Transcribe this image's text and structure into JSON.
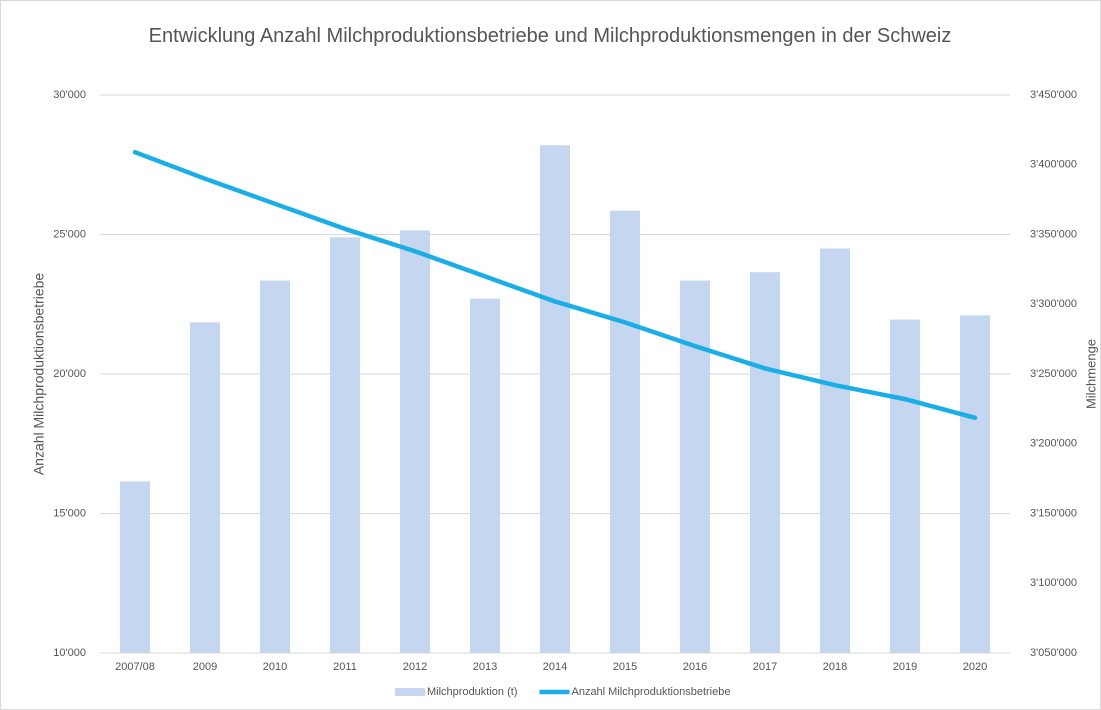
{
  "chart_data": {
    "type": "bar",
    "title": "Entwicklung Anzahl Milchproduktionsbetriebe und Milchproduktionsmengen in der Schweiz",
    "ylabel": "Anzahl Milchproduktionsbetriebe",
    "y2label": "Milchmenge",
    "categories": [
      "2007/08",
      "2009",
      "2010",
      "2011",
      "2012",
      "2013",
      "2014",
      "2015",
      "2016",
      "2017",
      "2018",
      "2019",
      "2020"
    ],
    "series": [
      {
        "name": "Milchproduktion (t)",
        "type": "bar",
        "axis": "y2",
        "color": "#c5d7f0",
        "values": [
          3173000,
          3287000,
          3317000,
          3348000,
          3353000,
          3304000,
          3414000,
          3367000,
          3317000,
          3323000,
          3340000,
          3289000,
          3292000
        ]
      },
      {
        "name": "Anzahl Milchproduktionsbetriebe",
        "type": "line",
        "axis": "y",
        "color": "#1aaee8",
        "values": [
          27950,
          27000,
          26100,
          25200,
          24400,
          23500,
          22600,
          21850,
          21000,
          20200,
          19600,
          19100,
          18430
        ]
      }
    ],
    "ylim": [
      10000,
      30000
    ],
    "yticks": [
      {
        "value": 10000,
        "label": "10'000"
      },
      {
        "value": 15000,
        "label": "15'000"
      },
      {
        "value": 20000,
        "label": "20'000"
      },
      {
        "value": 25000,
        "label": "25'000"
      },
      {
        "value": 30000,
        "label": "30'000"
      }
    ],
    "y2lim": [
      3050000,
      3450000
    ],
    "y2ticks": [
      {
        "value": 3050000,
        "label": "3'050'000"
      },
      {
        "value": 3100000,
        "label": "3'100'000"
      },
      {
        "value": 3150000,
        "label": "3'150'000"
      },
      {
        "value": 3200000,
        "label": "3'200'000"
      },
      {
        "value": 3250000,
        "label": "3'250'000"
      },
      {
        "value": 3300000,
        "label": "3'300'000"
      },
      {
        "value": 3350000,
        "label": "3'350'000"
      },
      {
        "value": 3400000,
        "label": "3'400'000"
      },
      {
        "value": 3450000,
        "label": "3'450'000"
      }
    ],
    "grid": true,
    "legend": "bottom"
  }
}
